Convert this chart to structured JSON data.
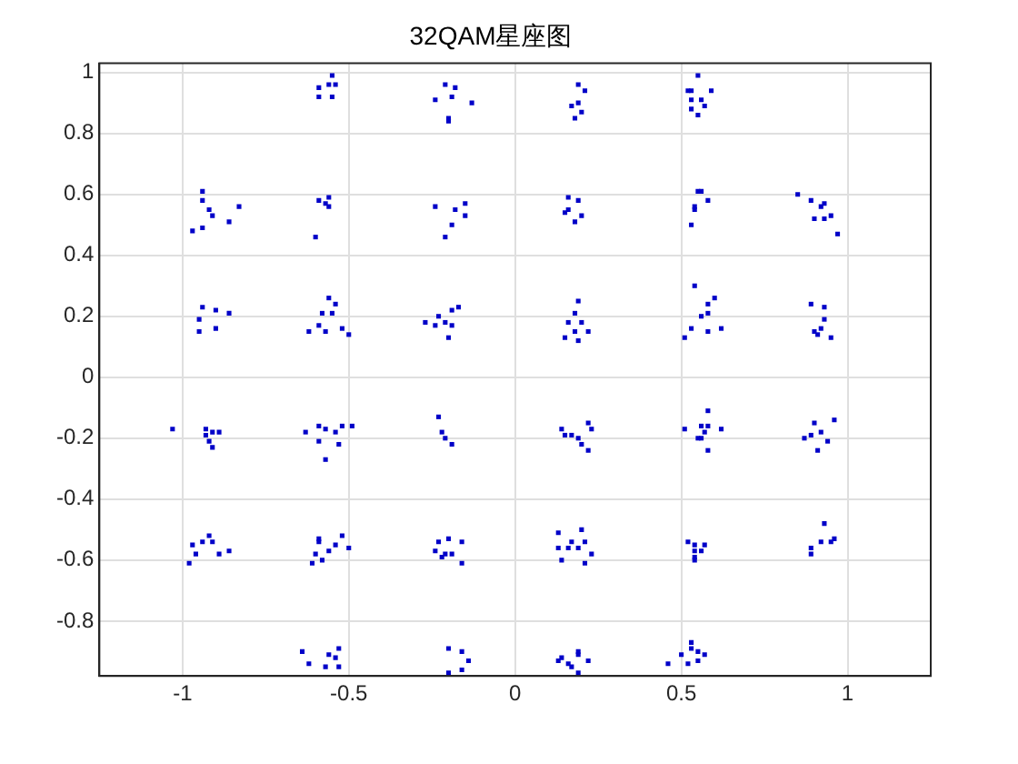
{
  "chart_data": {
    "type": "scatter",
    "title": "32QAM星座图",
    "xlim": [
      -1.25,
      1.25
    ],
    "xticks": [
      -1,
      -0.5,
      0,
      0.5,
      1
    ],
    "ylim": [
      -0.98,
      1.03
    ],
    "yticks": [
      -0.8,
      -0.6,
      -0.4,
      -0.2,
      0,
      0.2,
      0.4,
      0.6,
      0.8,
      1
    ],
    "grid": true,
    "marker": "square",
    "series": [
      {
        "color": "#0000c8",
        "x": [
          -0.55,
          -0.59,
          -0.59,
          -0.55,
          -0.56,
          -0.54,
          -0.94,
          -0.94,
          -0.92,
          -0.91,
          -0.97,
          -0.94,
          -0.86,
          -0.83,
          -0.59,
          -0.56,
          -0.56,
          -0.6,
          -0.57,
          -0.94,
          -0.9,
          -0.86,
          -0.95,
          -0.95,
          -0.9,
          -0.56,
          -0.54,
          -0.58,
          -0.55,
          -0.59,
          -0.62,
          -0.52,
          -0.5,
          -0.57,
          -0.21,
          -0.18,
          -0.24,
          -0.19,
          -0.13,
          -0.2,
          -0.2,
          0.19,
          0.21,
          0.17,
          0.19,
          0.2,
          0.18,
          -0.24,
          -0.18,
          -0.15,
          -0.15,
          -0.19,
          -0.21,
          0.16,
          0.19,
          0.15,
          0.16,
          0.2,
          0.18,
          -0.17,
          -0.19,
          -0.27,
          -0.23,
          -0.21,
          -0.19,
          -0.24,
          -0.2,
          0.19,
          0.18,
          0.16,
          0.2,
          0.22,
          0.15,
          0.19,
          0.18,
          0.55,
          0.52,
          0.53,
          0.59,
          0.53,
          0.56,
          0.57,
          0.53,
          0.55,
          0.55,
          0.56,
          0.58,
          0.54,
          0.54,
          0.53,
          0.85,
          0.89,
          0.93,
          0.92,
          0.9,
          0.93,
          0.95,
          0.97,
          0.54,
          0.6,
          0.58,
          0.58,
          0.56,
          0.53,
          0.51,
          0.58,
          0.62,
          0.89,
          0.93,
          0.93,
          0.92,
          0.9,
          0.91,
          0.95,
          -1.03,
          -0.93,
          -0.93,
          -0.91,
          -0.89,
          -0.92,
          -0.91,
          -0.63,
          -0.59,
          -0.57,
          -0.54,
          -0.59,
          -0.53,
          -0.57,
          -0.52,
          -0.49,
          -0.92,
          -0.97,
          -0.94,
          -0.91,
          -0.96,
          -0.98,
          -0.89,
          -0.86,
          -0.59,
          -0.59,
          -0.52,
          -0.54,
          -0.5,
          -0.56,
          -0.6,
          -0.61,
          -0.58,
          -0.64,
          -0.62,
          -0.56,
          -0.54,
          -0.53,
          -0.57,
          -0.53,
          -0.23,
          -0.22,
          -0.21,
          -0.19,
          0.14,
          0.15,
          0.17,
          0.19,
          0.22,
          0.23,
          0.2,
          0.22,
          -0.23,
          -0.2,
          -0.16,
          -0.24,
          -0.21,
          -0.19,
          -0.22,
          -0.16,
          0.13,
          0.2,
          0.13,
          0.16,
          0.17,
          0.19,
          0.21,
          0.23,
          0.14,
          0.21,
          -0.2,
          -0.16,
          -0.14,
          -0.16,
          -0.2,
          0.19,
          0.19,
          0.14,
          0.13,
          0.16,
          0.22,
          0.17,
          0.19,
          0.58,
          0.51,
          0.56,
          0.58,
          0.62,
          0.57,
          0.55,
          0.56,
          0.58,
          0.9,
          0.96,
          0.87,
          0.89,
          0.92,
          0.94,
          0.91,
          0.52,
          0.54,
          0.57,
          0.54,
          0.56,
          0.54,
          0.54,
          0.93,
          0.96,
          0.95,
          0.92,
          0.89,
          0.89,
          0.53,
          0.53,
          0.5,
          0.55,
          0.57,
          0.55,
          0.46,
          0.52
        ],
        "values": [
          0.99,
          0.95,
          0.92,
          0.92,
          0.96,
          0.96,
          0.61,
          0.58,
          0.55,
          0.53,
          0.48,
          0.49,
          0.51,
          0.56,
          0.58,
          0.59,
          0.56,
          0.46,
          0.57,
          0.23,
          0.22,
          0.21,
          0.19,
          0.15,
          0.16,
          0.26,
          0.24,
          0.21,
          0.21,
          0.17,
          0.15,
          0.16,
          0.14,
          0.15,
          0.96,
          0.95,
          0.91,
          0.92,
          0.9,
          0.85,
          0.84,
          0.96,
          0.94,
          0.89,
          0.9,
          0.87,
          0.85,
          0.56,
          0.55,
          0.57,
          0.53,
          0.5,
          0.46,
          0.59,
          0.58,
          0.54,
          0.55,
          0.53,
          0.51,
          0.23,
          0.22,
          0.18,
          0.2,
          0.18,
          0.17,
          0.17,
          0.13,
          0.25,
          0.21,
          0.18,
          0.18,
          0.15,
          0.13,
          0.12,
          0.15,
          0.99,
          0.94,
          0.94,
          0.94,
          0.91,
          0.91,
          0.89,
          0.88,
          0.86,
          0.61,
          0.61,
          0.58,
          0.56,
          0.55,
          0.5,
          0.6,
          0.58,
          0.57,
          0.56,
          0.52,
          0.52,
          0.53,
          0.47,
          0.3,
          0.26,
          0.24,
          0.21,
          0.2,
          0.16,
          0.13,
          0.15,
          0.16,
          0.24,
          0.23,
          0.19,
          0.16,
          0.15,
          0.14,
          0.13,
          -0.17,
          -0.17,
          -0.19,
          -0.18,
          -0.18,
          -0.21,
          -0.23,
          -0.18,
          -0.16,
          -0.17,
          -0.18,
          -0.21,
          -0.22,
          -0.27,
          -0.16,
          -0.16,
          -0.52,
          -0.55,
          -0.54,
          -0.54,
          -0.58,
          -0.61,
          -0.58,
          -0.57,
          -0.53,
          -0.54,
          -0.52,
          -0.55,
          -0.56,
          -0.57,
          -0.58,
          -0.61,
          -0.6,
          -0.9,
          -0.94,
          -0.91,
          -0.92,
          -0.89,
          -0.95,
          -0.95,
          -0.13,
          -0.18,
          -0.2,
          -0.22,
          -0.17,
          -0.19,
          -0.19,
          -0.2,
          -0.15,
          -0.17,
          -0.22,
          -0.24,
          -0.54,
          -0.53,
          -0.54,
          -0.57,
          -0.58,
          -0.58,
          -0.59,
          -0.61,
          -0.51,
          -0.5,
          -0.56,
          -0.56,
          -0.54,
          -0.56,
          -0.54,
          -0.58,
          -0.6,
          -0.61,
          -0.89,
          -0.9,
          -0.93,
          -0.96,
          -0.97,
          -0.9,
          -0.91,
          -0.92,
          -0.93,
          -0.94,
          -0.93,
          -0.95,
          -0.97,
          -0.11,
          -0.17,
          -0.16,
          -0.16,
          -0.17,
          -0.18,
          -0.2,
          -0.2,
          -0.24,
          -0.15,
          -0.14,
          -0.2,
          -0.19,
          -0.18,
          -0.21,
          -0.24,
          -0.54,
          -0.55,
          -0.55,
          -0.57,
          -0.57,
          -0.59,
          -0.6,
          -0.48,
          -0.53,
          -0.54,
          -0.54,
          -0.56,
          -0.58,
          -0.87,
          -0.89,
          -0.91,
          -0.9,
          -0.91,
          -0.93,
          -0.94,
          -0.94
        ]
      }
    ]
  }
}
